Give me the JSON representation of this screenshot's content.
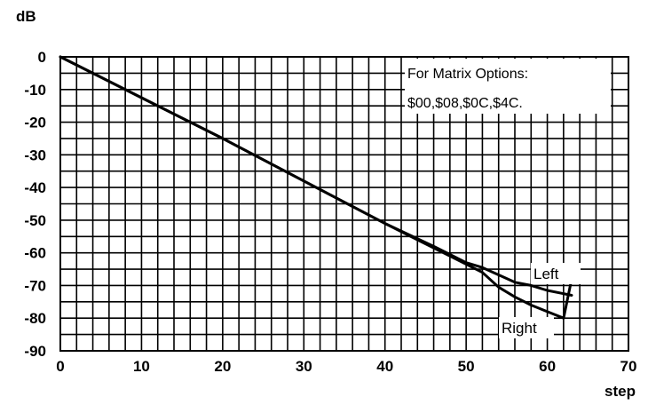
{
  "chart_data": {
    "type": "line",
    "ylabel": "dB",
    "xlabel": "step",
    "xlim": [
      0,
      70
    ],
    "ylim": [
      -90,
      0
    ],
    "x_ticks": [
      0,
      10,
      20,
      30,
      40,
      50,
      60,
      70
    ],
    "y_ticks": [
      0,
      -10,
      -20,
      -30,
      -40,
      -50,
      -60,
      -70,
      -80,
      -90
    ],
    "grid": true,
    "x_minor_step": 2,
    "y_minor_step": 5,
    "annotation": [
      "For Matrix Options:",
      "$00,$08,$0C,$4C."
    ],
    "series": [
      {
        "name": "Left",
        "x": [
          0,
          10,
          20,
          30,
          40,
          46,
          50,
          52,
          56,
          58,
          60,
          63
        ],
        "y": [
          0,
          -12.5,
          -25,
          -38,
          -51,
          -58,
          -63,
          -64.5,
          -69,
          -70,
          -71.5,
          -73
        ]
      },
      {
        "name": "Right",
        "x": [
          0,
          10,
          20,
          30,
          40,
          44,
          48,
          52,
          54,
          56,
          58,
          60,
          61,
          62,
          63
        ],
        "y": [
          0,
          -12.5,
          -25,
          -38,
          -51,
          -56,
          -61,
          -66,
          -70.5,
          -73.5,
          -76,
          -78,
          -79,
          -80,
          -68
        ]
      }
    ]
  }
}
